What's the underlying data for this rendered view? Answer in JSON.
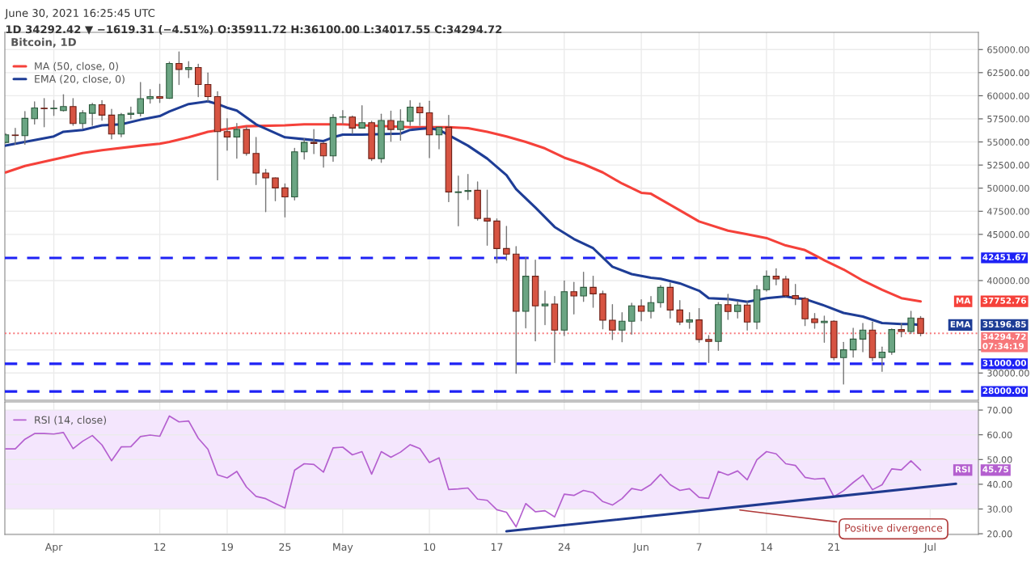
{
  "chart_data": [
    {
      "type": "candlestick",
      "title": "Bitcoin, 1D",
      "subtitle": "1D 34292.42 ▼ −1619.31 (−4.51%) O:35911.72 H:36100.00 L:34017.55 C:34294.72",
      "x": [
        "2021-03-27",
        "2021-03-28",
        "2021-03-29",
        "2021-03-30",
        "2021-03-31",
        "2021-04-01",
        "2021-04-02",
        "2021-04-03",
        "2021-04-04",
        "2021-04-05",
        "2021-04-06",
        "2021-04-07",
        "2021-04-08",
        "2021-04-09",
        "2021-04-10",
        "2021-04-11",
        "2021-04-12",
        "2021-04-13",
        "2021-04-14",
        "2021-04-15",
        "2021-04-16",
        "2021-04-17",
        "2021-04-18",
        "2021-04-19",
        "2021-04-20",
        "2021-04-21",
        "2021-04-22",
        "2021-04-23",
        "2021-04-24",
        "2021-04-25",
        "2021-04-26",
        "2021-04-27",
        "2021-04-28",
        "2021-04-29",
        "2021-04-30",
        "2021-05-01",
        "2021-05-02",
        "2021-05-03",
        "2021-05-04",
        "2021-05-05",
        "2021-05-06",
        "2021-05-07",
        "2021-05-08",
        "2021-05-09",
        "2021-05-10",
        "2021-05-11",
        "2021-05-12",
        "2021-05-13",
        "2021-05-14",
        "2021-05-15",
        "2021-05-16",
        "2021-05-17",
        "2021-05-18",
        "2021-05-19",
        "2021-05-20",
        "2021-05-21",
        "2021-05-22",
        "2021-05-23",
        "2021-05-24",
        "2021-05-25",
        "2021-05-26",
        "2021-05-27",
        "2021-05-28",
        "2021-05-29",
        "2021-05-30",
        "2021-05-31",
        "2021-06-01",
        "2021-06-02",
        "2021-06-03",
        "2021-06-04",
        "2021-06-05",
        "2021-06-06",
        "2021-06-07",
        "2021-06-08",
        "2021-06-09",
        "2021-06-10",
        "2021-06-11",
        "2021-06-12",
        "2021-06-13",
        "2021-06-14",
        "2021-06-15",
        "2021-06-16",
        "2021-06-17",
        "2021-06-18",
        "2021-06-19",
        "2021-06-20",
        "2021-06-21",
        "2021-06-22",
        "2021-06-23",
        "2021-06-24",
        "2021-06-25",
        "2021-06-26",
        "2021-06-27",
        "2021-06-28",
        "2021-06-29",
        "2021-06-30"
      ],
      "ohlc": [
        [
          54950,
          55900,
          54900,
          55770
        ],
        [
          55750,
          56470,
          54750,
          55700
        ],
        [
          55680,
          58300,
          54750,
          57550
        ],
        [
          57520,
          59330,
          56940,
          58680
        ],
        [
          58650,
          59700,
          56650,
          58600
        ],
        [
          58600,
          59500,
          57870,
          58650
        ],
        [
          58390,
          60110,
          58340,
          58830
        ],
        [
          58830,
          59700,
          56790,
          57000
        ],
        [
          57000,
          58390,
          56500,
          58160
        ],
        [
          58100,
          59180,
          56790,
          59030
        ],
        [
          59030,
          59470,
          57350,
          57900
        ],
        [
          57900,
          58540,
          55330,
          55860
        ],
        [
          55860,
          58100,
          55560,
          57950
        ],
        [
          57980,
          58770,
          57520,
          58100
        ],
        [
          58100,
          61430,
          57810,
          59680
        ],
        [
          59680,
          60670,
          59210,
          59910
        ],
        [
          59910,
          61250,
          59270,
          59730
        ],
        [
          59730,
          63640,
          59700,
          63490
        ],
        [
          63490,
          64750,
          61220,
          62850
        ],
        [
          62850,
          63700,
          61950,
          63060
        ],
        [
          63060,
          63410,
          59910,
          61220
        ],
        [
          61220,
          62470,
          59410,
          59910
        ],
        [
          59910,
          60430,
          50900,
          56120
        ],
        [
          56120,
          57520,
          54110,
          55540
        ],
        [
          55540,
          56990,
          53240,
          56350
        ],
        [
          56350,
          56650,
          53550,
          53760
        ],
        [
          53760,
          55480,
          50380,
          51630
        ],
        [
          51630,
          52040,
          47460,
          51110
        ],
        [
          51110,
          51110,
          48630,
          50030
        ],
        [
          50030,
          50460,
          46880,
          49060
        ],
        [
          49060,
          54310,
          48720,
          53930
        ],
        [
          53930,
          55330,
          53150,
          54950
        ],
        [
          54950,
          56350,
          53730,
          54840
        ],
        [
          54840,
          54900,
          52270,
          53500
        ],
        [
          53500,
          57960,
          52910,
          57640
        ],
        [
          57690,
          58390,
          56990,
          57700
        ],
        [
          57700,
          57810,
          55910,
          56500
        ],
        [
          56500,
          58920,
          56500,
          57080
        ],
        [
          57080,
          57230,
          52990,
          53200
        ],
        [
          53200,
          58010,
          52800,
          57320
        ],
        [
          57320,
          58330,
          55070,
          56350
        ],
        [
          56350,
          58480,
          55190,
          57230
        ],
        [
          57230,
          59470,
          56790,
          58770
        ],
        [
          58770,
          59210,
          56790,
          58160
        ],
        [
          58160,
          59410,
          53290,
          55770
        ],
        [
          55770,
          56590,
          54250,
          56590
        ],
        [
          56590,
          57870,
          48540,
          49590
        ],
        [
          49530,
          51310,
          45920,
          49600
        ],
        [
          49650,
          51480,
          48770,
          49740
        ],
        [
          49770,
          50670,
          46530,
          46730
        ],
        [
          46730,
          49790,
          43820,
          46440
        ],
        [
          46440,
          46670,
          41920,
          43470
        ],
        [
          43470,
          45860,
          42210,
          42860
        ],
        [
          42860,
          43670,
          29970,
          36680
        ],
        [
          36680,
          42500,
          34870,
          40470
        ],
        [
          40470,
          42210,
          33470,
          37260
        ],
        [
          37260,
          38860,
          35220,
          37460
        ],
        [
          37460,
          38280,
          31140,
          34640
        ],
        [
          34640,
          39970,
          34050,
          38800
        ],
        [
          38800,
          39800,
          36390,
          38340
        ],
        [
          38340,
          40900,
          37750,
          39270
        ],
        [
          39270,
          40470,
          37110,
          38570
        ],
        [
          38570,
          38860,
          34780,
          35710
        ],
        [
          35710,
          37400,
          33620,
          34640
        ],
        [
          34640,
          36530,
          33380,
          35600
        ],
        [
          35600,
          37550,
          34200,
          37260
        ],
        [
          37260,
          37930,
          35650,
          36680
        ],
        [
          36680,
          38280,
          35950,
          37610
        ],
        [
          37610,
          39450,
          37110,
          39270
        ],
        [
          39270,
          39740,
          35950,
          36820
        ],
        [
          36820,
          37840,
          35220,
          35510
        ],
        [
          35510,
          36530,
          34840,
          35740
        ],
        [
          35740,
          36970,
          33320,
          33620
        ],
        [
          33620,
          34050,
          31140,
          33410
        ],
        [
          33410,
          37610,
          32450,
          37400
        ],
        [
          37400,
          38510,
          35800,
          36650
        ],
        [
          36650,
          37750,
          35950,
          37350
        ],
        [
          37350,
          37700,
          34640,
          35510
        ],
        [
          35510,
          39450,
          34780,
          39010
        ],
        [
          39010,
          41050,
          38860,
          40470
        ],
        [
          40470,
          41280,
          39530,
          40170
        ],
        [
          40170,
          40470,
          38280,
          38370
        ],
        [
          38370,
          39590,
          37400,
          38050
        ],
        [
          38050,
          38190,
          35130,
          35860
        ],
        [
          35860,
          36440,
          34840,
          35450
        ],
        [
          35450,
          36150,
          33320,
          35600
        ],
        [
          35600,
          35660,
          31430,
          31660
        ],
        [
          31660,
          33320,
          28810,
          32510
        ],
        [
          32510,
          34840,
          31720,
          33670
        ],
        [
          33670,
          35370,
          32300,
          34640
        ],
        [
          34640,
          35510,
          31340,
          31660
        ],
        [
          31660,
          32800,
          30180,
          32250
        ],
        [
          32250,
          34780,
          32010,
          34690
        ],
        [
          34690,
          35370,
          33910,
          34490
        ],
        [
          34490,
          36680,
          34260,
          35950
        ],
        [
          35911.72,
          36100.0,
          34017.55,
          34294.72
        ]
      ],
      "series": [
        {
          "type": "line",
          "name": "MA (50, close, 0)",
          "color": "#f5413a",
          "x": [
            "2021-03-27",
            "2021-03-29",
            "2021-04-01",
            "2021-04-04",
            "2021-04-06",
            "2021-04-10",
            "2021-04-12",
            "2021-04-13",
            "2021-04-15",
            "2021-04-17",
            "2021-04-19",
            "2021-04-21",
            "2021-04-25",
            "2021-04-27",
            "2021-04-29",
            "2021-05-01",
            "2021-05-03",
            "2021-05-08",
            "2021-05-10",
            "2021-05-12",
            "2021-05-14",
            "2021-05-16",
            "2021-05-18",
            "2021-05-20",
            "2021-05-22",
            "2021-05-24",
            "2021-05-26",
            "2021-05-28",
            "2021-05-30",
            "2021-06-01",
            "2021-06-02",
            "2021-06-05",
            "2021-06-07",
            "2021-06-10",
            "2021-06-12",
            "2021-06-14",
            "2021-06-16",
            "2021-06-18",
            "2021-06-20",
            "2021-06-22",
            "2021-06-24",
            "2021-06-26",
            "2021-06-28",
            "2021-06-30"
          ],
          "values": [
            51700,
            52400,
            53100,
            53800,
            54100,
            54600,
            54800,
            55000,
            55500,
            56100,
            56400,
            56700,
            56800,
            56900,
            56900,
            56900,
            56800,
            56600,
            56600,
            56600,
            56500,
            56100,
            55600,
            55000,
            54300,
            53300,
            52600,
            51700,
            50500,
            49500,
            49400,
            47600,
            46400,
            45400,
            45000,
            44600,
            43800,
            43300,
            42200,
            41200,
            40000,
            39000,
            38100,
            37752.76
          ]
        },
        {
          "type": "line",
          "name": "EMA (20, close, 0)",
          "color": "#1e3d96",
          "x": [
            "2021-03-27",
            "2021-03-29",
            "2021-04-01",
            "2021-04-02",
            "2021-04-04",
            "2021-04-06",
            "2021-04-08",
            "2021-04-10",
            "2021-04-12",
            "2021-04-13",
            "2021-04-15",
            "2021-04-17",
            "2021-04-18",
            "2021-04-19",
            "2021-04-20",
            "2021-04-22",
            "2021-04-25",
            "2021-04-27",
            "2021-04-29",
            "2021-04-30",
            "2021-05-01",
            "2021-05-03",
            "2021-05-07",
            "2021-05-08",
            "2021-05-09",
            "2021-05-10",
            "2021-05-11",
            "2021-05-14",
            "2021-05-16",
            "2021-05-18",
            "2021-05-19",
            "2021-05-21",
            "2021-05-23",
            "2021-05-25",
            "2021-05-27",
            "2021-05-29",
            "2021-05-31",
            "2021-06-02",
            "2021-06-03",
            "2021-06-05",
            "2021-06-07",
            "2021-06-08",
            "2021-06-10",
            "2021-06-12",
            "2021-06-13",
            "2021-06-14",
            "2021-06-16",
            "2021-06-17",
            "2021-06-18",
            "2021-06-20",
            "2021-06-22",
            "2021-06-24",
            "2021-06-26",
            "2021-06-28",
            "2021-06-29",
            "2021-06-30"
          ],
          "values": [
            54600,
            55000,
            55600,
            56100,
            56300,
            56800,
            56900,
            57400,
            57800,
            58300,
            59100,
            59400,
            59100,
            58700,
            58400,
            56900,
            55500,
            55300,
            55100,
            55500,
            55800,
            55800,
            55900,
            56300,
            56400,
            56500,
            56300,
            54600,
            53200,
            51400,
            49900,
            47900,
            45800,
            44500,
            43500,
            41500,
            40700,
            40300,
            40200,
            39700,
            38900,
            38100,
            38000,
            37700,
            37900,
            38100,
            38300,
            38100,
            38000,
            37300,
            36500,
            36100,
            35400,
            35300,
            35300,
            35196.85
          ]
        }
      ],
      "xlim": [
        "2021-03-26T22:00",
        "2021-07-06"
      ],
      "xticks": [
        {
          "value": "2021-04-01",
          "label": null
        },
        {
          "value": "2021-04-12",
          "label": null
        },
        {
          "value": "2021-04-19",
          "label": null
        },
        {
          "value": "2021-04-25",
          "label": null
        },
        {
          "value": "2021-05-01",
          "label": null
        },
        {
          "value": "2021-05-10",
          "label": null
        },
        {
          "value": "2021-05-17",
          "label": null
        },
        {
          "value": "2021-05-24",
          "label": null
        },
        {
          "value": "2021-06-01",
          "label": null
        },
        {
          "value": "2021-06-07",
          "label": null
        },
        {
          "value": "2021-06-14",
          "label": null
        },
        {
          "value": "2021-06-21",
          "label": null
        },
        {
          "value": "2021-07-01",
          "label": null
        }
      ],
      "ylim": [
        27050,
        66860
      ],
      "yticks": [
        {
          "value": 30000,
          "label": "30000.00"
        },
        {
          "value": 32500,
          "label": null
        },
        {
          "value": 40000,
          "label": "40000.00"
        },
        {
          "value": 45000,
          "label": "45000.00"
        },
        {
          "value": 47500,
          "label": "47500.00"
        },
        {
          "value": 50000,
          "label": "50000.00"
        },
        {
          "value": 52500,
          "label": "52500.00"
        },
        {
          "value": 55000,
          "label": "55000.00"
        },
        {
          "value": 57500,
          "label": "57500.00"
        },
        {
          "value": 60000,
          "label": "60000.00"
        },
        {
          "value": 62500,
          "label": "62500.00"
        },
        {
          "value": 65000,
          "label": "65000.00"
        }
      ],
      "tick_labels": "y",
      "grid": true,
      "legend": "top left",
      "ref_lines": [
        {
          "axis": "y",
          "value": 42451.67,
          "label": "42451.67",
          "color": "#1e22f5",
          "line_style": "dashed"
        },
        {
          "axis": "y",
          "value": 31000,
          "label": "31000.00",
          "color": "#1e22f5",
          "line_style": "dashed"
        },
        {
          "axis": "y",
          "value": 28000,
          "label": "28000.00",
          "color": "#1e22f5",
          "line_style": "dashed"
        },
        {
          "axis": "y",
          "value": 34294.72,
          "label": "34294.72\n07:34:19",
          "color": "#f7777a",
          "line_style": "dotted"
        }
      ],
      "annotations": [
        "June 30, 2021 16:25:45 UTC",
        "MA",
        "37752.76",
        "EMA",
        "35196.85"
      ]
    },
    {
      "type": "line",
      "x": [
        "2021-03-27",
        "2021-03-28",
        "2021-03-29",
        "2021-03-30",
        "2021-03-31",
        "2021-04-01",
        "2021-04-02",
        "2021-04-03",
        "2021-04-04",
        "2021-04-05",
        "2021-04-06",
        "2021-04-07",
        "2021-04-08",
        "2021-04-09",
        "2021-04-10",
        "2021-04-11",
        "2021-04-12",
        "2021-04-13",
        "2021-04-14",
        "2021-04-15",
        "2021-04-16",
        "2021-04-17",
        "2021-04-18",
        "2021-04-19",
        "2021-04-20",
        "2021-04-21",
        "2021-04-22",
        "2021-04-23",
        "2021-04-24",
        "2021-04-25",
        "2021-04-26",
        "2021-04-27",
        "2021-04-28",
        "2021-04-29",
        "2021-04-30",
        "2021-05-01",
        "2021-05-02",
        "2021-05-03",
        "2021-05-04",
        "2021-05-05",
        "2021-05-06",
        "2021-05-07",
        "2021-05-08",
        "2021-05-09",
        "2021-05-10",
        "2021-05-11",
        "2021-05-12",
        "2021-05-13",
        "2021-05-14",
        "2021-05-15",
        "2021-05-16",
        "2021-05-17",
        "2021-05-18",
        "2021-05-19",
        "2021-05-20",
        "2021-05-21",
        "2021-05-22",
        "2021-05-23",
        "2021-05-24",
        "2021-05-25",
        "2021-05-26",
        "2021-05-27",
        "2021-05-28",
        "2021-05-29",
        "2021-05-30",
        "2021-05-31",
        "2021-06-01",
        "2021-06-02",
        "2021-06-03",
        "2021-06-04",
        "2021-06-05",
        "2021-06-06",
        "2021-06-07",
        "2021-06-08",
        "2021-06-09",
        "2021-06-10",
        "2021-06-11",
        "2021-06-12",
        "2021-06-13",
        "2021-06-14",
        "2021-06-15",
        "2021-06-16",
        "2021-06-17",
        "2021-06-18",
        "2021-06-19",
        "2021-06-20",
        "2021-06-21",
        "2021-06-22",
        "2021-06-23",
        "2021-06-24",
        "2021-06-25",
        "2021-06-26",
        "2021-06-27",
        "2021-06-28",
        "2021-06-29",
        "2021-06-30"
      ],
      "series": [
        {
          "name": "RSI (14, close)",
          "color": "#b45fcf",
          "values": [
            54.3,
            54.3,
            58.2,
            60.5,
            60.5,
            60.3,
            60.9,
            54.4,
            57.4,
            59.7,
            55.9,
            49.5,
            55.1,
            55.2,
            59.3,
            59.9,
            59.4,
            67.6,
            65.2,
            65.6,
            58.6,
            54.2,
            43.8,
            42.6,
            45.2,
            38.9,
            35.1,
            34.2,
            32.2,
            30.4,
            45.7,
            48.3,
            48.0,
            44.9,
            54.7,
            55.0,
            51.9,
            53.2,
            44.1,
            53.2,
            50.9,
            53.0,
            56.0,
            54.4,
            48.8,
            50.7,
            37.9,
            38.1,
            38.5,
            34.0,
            33.5,
            29.7,
            28.7,
            22.8,
            32.2,
            28.9,
            29.3,
            26.8,
            36.0,
            35.5,
            37.5,
            36.6,
            33.0,
            31.6,
            34.2,
            38.3,
            37.5,
            39.9,
            44.0,
            39.8,
            37.5,
            38.2,
            34.7,
            34.3,
            45.2,
            43.7,
            45.4,
            41.8,
            49.9,
            53.2,
            52.3,
            48.3,
            47.6,
            42.8,
            42.1,
            42.4,
            35.0,
            37.4,
            40.7,
            43.7,
            37.8,
            39.8,
            46.2,
            45.8,
            49.5,
            45.75
          ]
        },
        {
          "type": "line",
          "color": "#1f3a8f",
          "x": [
            "2021-05-18",
            "2021-07-03T16:00"
          ],
          "values": [
            21.0,
            40.2
          ]
        }
      ],
      "xlim": [
        "2021-03-26T22:00",
        "2021-07-06"
      ],
      "xticks": [
        {
          "value": "2021-04-01",
          "label": "Apr"
        },
        {
          "value": "2021-04-12",
          "label": "12"
        },
        {
          "value": "2021-04-19",
          "label": "19"
        },
        {
          "value": "2021-04-25",
          "label": "25"
        },
        {
          "value": "2021-05-01",
          "label": "May"
        },
        {
          "value": "2021-05-10",
          "label": "10"
        },
        {
          "value": "2021-05-17",
          "label": "17"
        },
        {
          "value": "2021-05-24",
          "label": "24"
        },
        {
          "value": "2021-06-01",
          "label": "Jun"
        },
        {
          "value": "2021-06-07",
          "label": "7"
        },
        {
          "value": "2021-06-14",
          "label": "14"
        },
        {
          "value": "2021-06-21",
          "label": "21"
        },
        {
          "value": "2021-07-01",
          "label": "Jul"
        }
      ],
      "ylim": [
        19.7,
        73.3
      ],
      "yticks": [
        {
          "value": 20,
          "label": "20.00"
        },
        {
          "value": 30,
          "label": "30.00"
        },
        {
          "value": 40,
          "label": "40.00"
        },
        {
          "value": 50,
          "label": "50.00"
        },
        {
          "value": 60,
          "label": "60.00"
        },
        {
          "value": 70,
          "label": "70.00"
        }
      ],
      "grid": true,
      "legend": "top left",
      "bands": [
        {
          "axis": "y",
          "from": 30,
          "to": 70,
          "color": "#f4e6fd"
        }
      ],
      "annotations": [
        "RSI",
        "45.75",
        {
          "text": "Positive divergence",
          "x": "2021-06-11",
          "y": 29.7
        }
      ]
    }
  ]
}
